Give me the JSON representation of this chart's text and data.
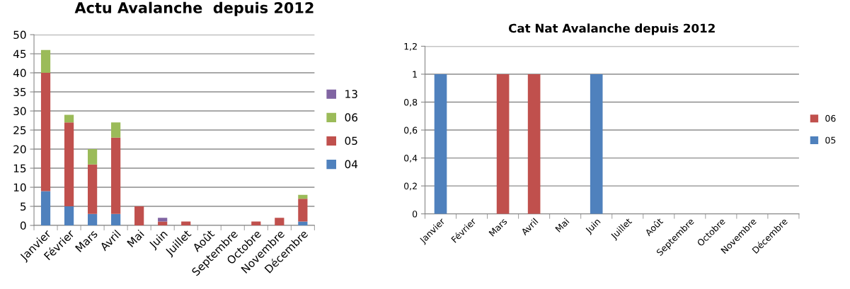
{
  "chart_data": [
    {
      "type": "bar",
      "title": "Actu Avalanche  depuis 2012",
      "stacked": true,
      "grid": "y",
      "legend": "right",
      "categories": [
        "Janvier",
        "Février",
        "Mars",
        "Avril",
        "Mai",
        "Juin",
        "Juillet",
        "Août",
        "Septembre",
        "Octobre",
        "Novembre",
        "Décembre"
      ],
      "ylim": [
        0,
        50
      ],
      "yticks": [
        0,
        5,
        10,
        15,
        20,
        25,
        30,
        35,
        40,
        45,
        50
      ],
      "series": [
        {
          "name": "04",
          "color": "#4f81bd",
          "values": [
            9,
            5,
            3,
            3,
            0,
            0,
            0,
            0,
            0,
            0,
            0,
            1
          ]
        },
        {
          "name": "05",
          "color": "#c0504d",
          "values": [
            31,
            22,
            13,
            20,
            5,
            1,
            1,
            0,
            0,
            1,
            2,
            6
          ]
        },
        {
          "name": "06",
          "color": "#9bbb59",
          "values": [
            6,
            2,
            4,
            4,
            0,
            0,
            0,
            0,
            0,
            0,
            0,
            1
          ]
        },
        {
          "name": "13",
          "color": "#8064a2",
          "values": [
            0,
            0,
            0,
            0,
            0,
            1,
            0,
            0,
            0,
            0,
            0,
            0
          ]
        }
      ]
    },
    {
      "type": "bar",
      "title": "Cat Nat Avalanche depuis 2012",
      "stacked": true,
      "grid": "y",
      "legend": "right",
      "categories": [
        "Janvier",
        "Février",
        "Mars",
        "Avril",
        "Mai",
        "Juin",
        "Juillet",
        "Août",
        "Septembre",
        "Octobre",
        "Novembre",
        "Décembre"
      ],
      "ylim": [
        0,
        1.2
      ],
      "yticks": [
        0,
        {
          "value": 0.2,
          "label": "0,2"
        },
        {
          "value": 0.4,
          "label": "0,4"
        },
        {
          "value": 0.6,
          "label": "0,6"
        },
        {
          "value": 0.8,
          "label": "0,8"
        },
        1,
        {
          "value": 1.2,
          "label": "1,2"
        }
      ],
      "series": [
        {
          "name": "05",
          "color": "#4f81bd",
          "values": [
            1,
            0,
            0,
            0,
            0,
            1,
            0,
            0,
            0,
            0,
            0,
            0
          ]
        },
        {
          "name": "06",
          "color": "#c0504d",
          "values": [
            0,
            0,
            1,
            1,
            0,
            0,
            0,
            0,
            0,
            0,
            0,
            0
          ]
        }
      ]
    }
  ]
}
